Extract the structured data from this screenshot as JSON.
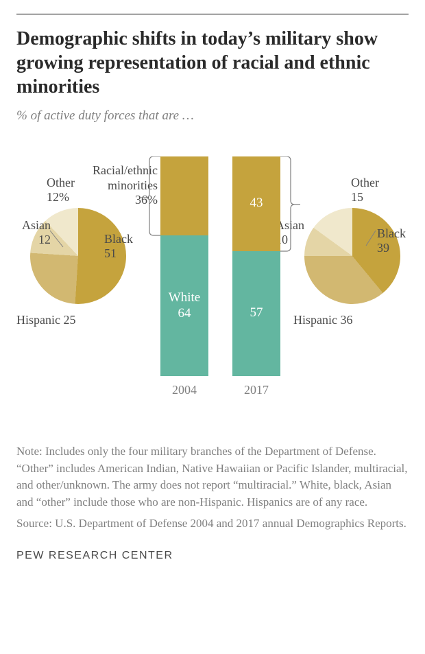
{
  "title": "Demographic shifts in today’s military show growing representation of racial and ethnic minorities",
  "subtitle": "% of active duty forces that are …",
  "colors": {
    "minority": "#c5a33d",
    "white": "#63b6a0",
    "pie_black": "#c5a33d",
    "pie_hispanic": "#d2b871",
    "pie_asian": "#e4d5a6",
    "pie_other": "#f0e8cc",
    "text": "#4a4a4a",
    "subtext": "#808080",
    "barlabel": "#ffffff"
  },
  "bars": {
    "year_left": "2004",
    "year_right": "2017",
    "left": {
      "minority_pct": 36,
      "white_pct": 64,
      "minority_label": "Racial/ethnic\nminorities\n36%",
      "white_label": "White\n64"
    },
    "right": {
      "minority_pct": 43,
      "white_pct": 57,
      "minority_label": "43",
      "white_label": "57"
    }
  },
  "pies": {
    "left": {
      "slices": [
        {
          "name": "Black",
          "value": 51,
          "label": "Black\n51"
        },
        {
          "name": "Hispanic",
          "value": 25,
          "label": "Hispanic 25"
        },
        {
          "name": "Asian",
          "value": 12,
          "label": "Asian\n12"
        },
        {
          "name": "Other",
          "value": 12,
          "label": "Other\n12%"
        }
      ]
    },
    "right": {
      "slices": [
        {
          "name": "Black",
          "value": 39,
          "label": "Black\n39"
        },
        {
          "name": "Hispanic",
          "value": 36,
          "label": "Hispanic 36"
        },
        {
          "name": "Asian",
          "value": 10,
          "label": "Asian\n10"
        },
        {
          "name": "Other",
          "value": 15,
          "label": "Other\n15"
        }
      ]
    }
  },
  "note": "Note: Includes only the four military branches of the Department of Defense. “Other” includes American Indian, Native Hawaiian or Pacific Islander, multiracial, and other/unknown. The army does not report “multiracial.” White, black, Asian and “other” include those who are non-Hispanic. Hispanics are of any race.",
  "source": "Source: U.S. Department of Defense 2004 and 2017 annual Demographics Reports.",
  "brand": "PEW RESEARCH CENTER"
}
